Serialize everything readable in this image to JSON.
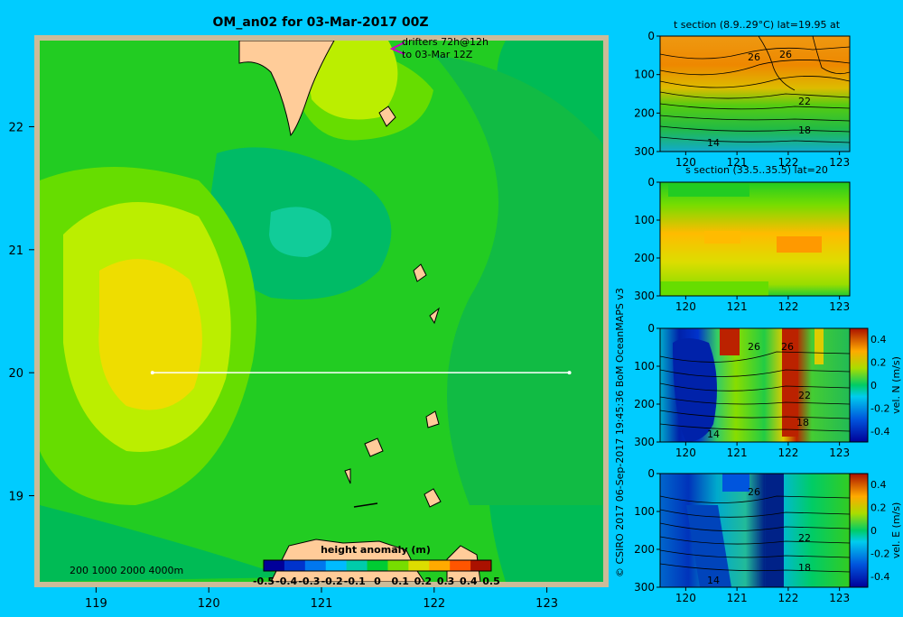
{
  "figure": {
    "main_title": "OM_an02 for 03-Mar-2017 00Z",
    "drifters_line1": "drifters 72h@12h",
    "drifters_line2": "to 03-Mar 12Z",
    "depth_legend": "200  1000  2000  4000m",
    "credit": "© CSIRO 2017   06-Sep-2017 19:45:36 BoM OceanMAPS v3",
    "background_color": "#00ccff"
  },
  "chart_data": [
    {
      "type": "heatmap",
      "title": "OM_an02 for 03-Mar-2017 00Z",
      "xlabel": "",
      "ylabel": "",
      "xlim": [
        118.5,
        123.5
      ],
      "ylim": [
        18.3,
        22.7
      ],
      "x_ticks": [
        "119",
        "120",
        "121",
        "122",
        "123"
      ],
      "y_ticks": [
        "19",
        "20",
        "21",
        "22"
      ],
      "colorbar_label": "height anomaly (m)",
      "colorbar_ticks": [
        "-0.5",
        "-0.4",
        "-0.3",
        "-0.2",
        "-0.1",
        "0",
        "0.1",
        "0.2",
        "0.3",
        "0.4",
        "0.5"
      ],
      "colorbar_colors": [
        "#000099",
        "#0033cc",
        "#0077ee",
        "#00bbff",
        "#00ccaa",
        "#00cc33",
        "#77dd00",
        "#dddd00",
        "#ffaa00",
        "#ff5500",
        "#aa1100"
      ],
      "field_colors": [
        "#00bb55",
        "#22cc22",
        "#66dd00",
        "#bbee00",
        "#eedd00"
      ],
      "section_line": {
        "lat": 20,
        "lon_start": 119.5,
        "lon_end": 123.2
      },
      "grid": false
    },
    {
      "type": "heatmap",
      "title": "t section (8.9..29°C) lat=19.95 at",
      "xlim": [
        119.5,
        123.2
      ],
      "ylim": [
        300,
        0
      ],
      "x_ticks": [
        "120",
        "121",
        "122",
        "123"
      ],
      "y_ticks": [
        "0",
        "100",
        "200",
        "300"
      ],
      "contour_labels": [
        "26",
        "26",
        "22",
        "18",
        "14"
      ]
    },
    {
      "type": "heatmap",
      "title": "s section (33.5..35.5) lat=20",
      "xlim": [
        119.5,
        123.2
      ],
      "ylim": [
        300,
        0
      ],
      "x_ticks": [
        "120",
        "121",
        "122",
        "123"
      ],
      "y_ticks": [
        "0",
        "100",
        "200",
        "300"
      ]
    },
    {
      "type": "heatmap",
      "title": "",
      "xlim": [
        119.5,
        123.2
      ],
      "ylim": [
        300,
        0
      ],
      "x_ticks": [
        "120",
        "121",
        "122",
        "123"
      ],
      "y_ticks": [
        "0",
        "100",
        "200",
        "300"
      ],
      "contour_labels": [
        "26",
        "26",
        "22",
        "18",
        "14"
      ],
      "colorbar_label": "vel. N (m/s)",
      "colorbar_ticks": [
        "0.4",
        "0.2",
        "0",
        "-0.2",
        "-0.4"
      ]
    },
    {
      "type": "heatmap",
      "title": "",
      "xlim": [
        119.5,
        123.2
      ],
      "ylim": [
        300,
        0
      ],
      "x_ticks": [
        "120",
        "121",
        "122",
        "123"
      ],
      "y_ticks": [
        "0",
        "100",
        "200",
        "300"
      ],
      "contour_labels": [
        "26",
        "22",
        "18",
        "14"
      ],
      "colorbar_label": "vel. E (m/s)",
      "colorbar_ticks": [
        "0.4",
        "0.2",
        "0",
        "-0.2",
        "-0.4"
      ]
    }
  ]
}
